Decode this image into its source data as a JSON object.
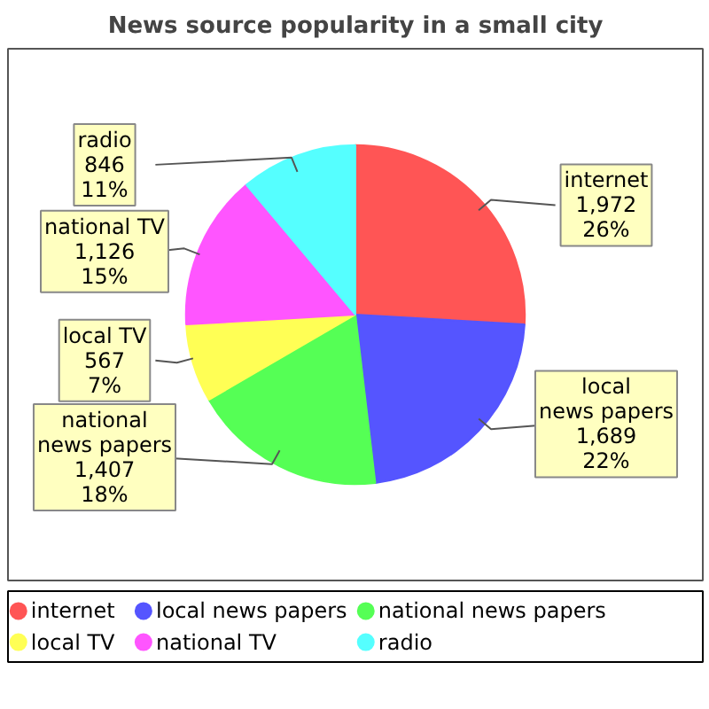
{
  "chart_data": {
    "type": "pie",
    "title": "News source popularity in a small city",
    "categories": [
      "internet",
      "local news papers",
      "national news papers",
      "local TV",
      "national TV",
      "radio"
    ],
    "values": [
      1972,
      1689,
      1407,
      567,
      1126,
      846
    ],
    "colors": [
      "#ff5555",
      "#5555ff",
      "#55ff55",
      "#ffff55",
      "#ff55ff",
      "#55ffff"
    ],
    "value_labels": [
      "internet\n1,972\n26%",
      "local\nnews papers\n1,689\n22%",
      "national\nnews papers\n1,407\n18%",
      "local TV\n567\n7%",
      "national TV\n1,126\n15%",
      "radio\n846\n11%"
    ],
    "legend": "bottom"
  }
}
